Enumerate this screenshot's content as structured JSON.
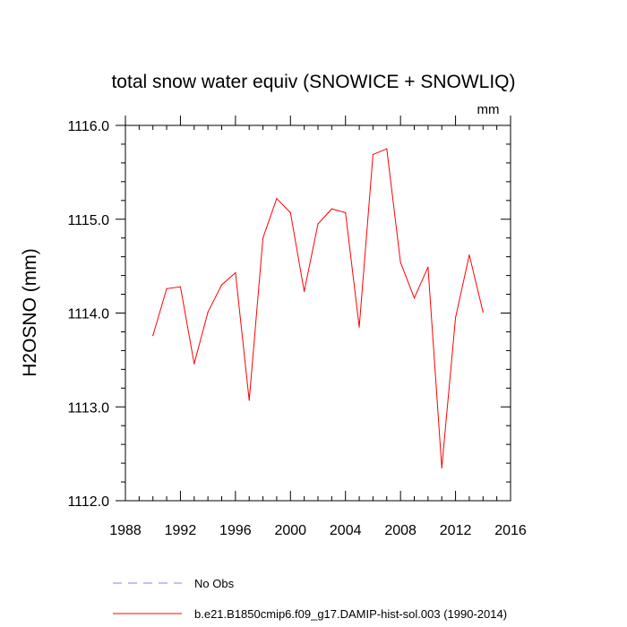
{
  "chart_data": {
    "type": "line",
    "title": "total snow water equiv (SNOWICE + SNOWLIQ)",
    "units_label": "mm",
    "ylabel": "H2OSNO  (mm)",
    "xlabel": "",
    "xlim": [
      1988,
      2016
    ],
    "ylim": [
      1112.0,
      1116.0
    ],
    "x_ticks": [
      1988,
      1992,
      1996,
      2000,
      2004,
      2008,
      2012,
      2016
    ],
    "x_tick_labels": [
      "1988",
      "1992",
      "1996",
      "2000",
      "2004",
      "2008",
      "2012",
      "2016"
    ],
    "y_ticks": [
      1112.0,
      1113.0,
      1114.0,
      1115.0,
      1116.0
    ],
    "y_tick_labels": [
      "1112.0",
      "1113.0",
      "1114.0",
      "1115.0",
      "1116.0"
    ],
    "grid": false,
    "legend_position": "bottom",
    "series": [
      {
        "name": "No Obs",
        "color": "#7f7fff",
        "dash": "dashed",
        "x": [],
        "y": []
      },
      {
        "name": "b.e21.B1850cmip6.f09_g17.DAMIP-hist-sol.003 (1990-2014)",
        "color": "#ff0000",
        "dash": "solid",
        "x": [
          1990,
          1991,
          1992,
          1993,
          1994,
          1995,
          1996,
          1997,
          1998,
          1999,
          2000,
          2001,
          2002,
          2003,
          2004,
          2005,
          2006,
          2007,
          2008,
          2009,
          2010,
          2011,
          2012,
          2013,
          2014
        ],
        "y": [
          1113.76,
          1114.26,
          1114.28,
          1113.46,
          1114.01,
          1114.3,
          1114.43,
          1113.07,
          1114.8,
          1115.22,
          1115.07,
          1114.23,
          1114.95,
          1115.11,
          1115.07,
          1113.85,
          1115.69,
          1115.75,
          1114.54,
          1114.16,
          1114.49,
          1112.35,
          1113.95,
          1114.62,
          1114.01
        ]
      }
    ]
  }
}
